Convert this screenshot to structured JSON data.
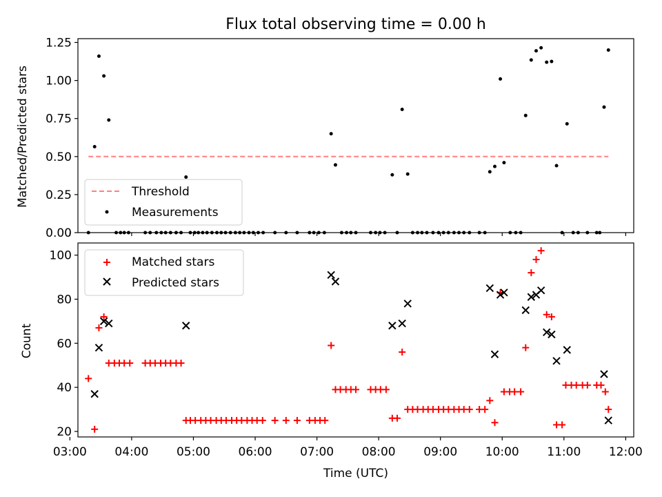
{
  "title": "Flux total observing time = 0.00 h",
  "colors": {
    "threshold": "#ff7f7f",
    "measurement": "#000000",
    "matched": "#ff0000",
    "predicted": "#000000"
  },
  "chart_data": [
    {
      "type": "scatter",
      "title": "Flux total observing time = 0.00 h",
      "ylabel": "Matched/Predicted stars",
      "xlim": [
        3.13,
        12.13
      ],
      "ylim": [
        0,
        1.275
      ],
      "yticks": [
        0.0,
        0.25,
        0.5,
        0.75,
        1.0,
        1.25
      ],
      "ytick_labels": [
        "0.00",
        "0.25",
        "0.50",
        "0.75",
        "1.00",
        "1.25"
      ],
      "legend_position": "lower-left",
      "threshold": {
        "name": "Threshold",
        "value": 0.5,
        "x_range": [
          3.3,
          11.72
        ],
        "style": "dashed"
      },
      "series": [
        {
          "name": "Measurements",
          "marker": "dot",
          "points": [
            [
              3.3,
              0
            ],
            [
              3.4,
              0.565
            ],
            [
              3.47,
              1.16
            ],
            [
              3.55,
              1.03
            ],
            [
              3.63,
              0.74
            ],
            [
              3.75,
              0
            ],
            [
              3.82,
              0
            ],
            [
              3.88,
              0
            ],
            [
              3.95,
              0
            ],
            [
              4.22,
              0
            ],
            [
              4.3,
              0
            ],
            [
              4.4,
              0
            ],
            [
              4.48,
              0
            ],
            [
              4.55,
              0
            ],
            [
              4.63,
              0
            ],
            [
              4.72,
              0
            ],
            [
              4.8,
              0
            ],
            [
              4.88,
              0.365
            ],
            [
              4.95,
              0
            ],
            [
              5.02,
              0
            ],
            [
              5.08,
              0
            ],
            [
              5.15,
              0
            ],
            [
              5.22,
              0
            ],
            [
              5.3,
              0
            ],
            [
              5.38,
              0
            ],
            [
              5.45,
              0
            ],
            [
              5.52,
              0
            ],
            [
              5.6,
              0
            ],
            [
              5.68,
              0
            ],
            [
              5.75,
              0
            ],
            [
              5.82,
              0
            ],
            [
              5.9,
              0
            ],
            [
              5.97,
              0
            ],
            [
              6.05,
              0
            ],
            [
              6.13,
              0
            ],
            [
              6.32,
              0
            ],
            [
              6.5,
              0
            ],
            [
              6.68,
              0
            ],
            [
              6.88,
              0
            ],
            [
              6.95,
              0
            ],
            [
              7.03,
              0
            ],
            [
              7.12,
              0
            ],
            [
              7.23,
              0.65
            ],
            [
              7.3,
              0.445
            ],
            [
              7.4,
              0
            ],
            [
              7.48,
              0
            ],
            [
              7.55,
              0
            ],
            [
              7.63,
              0
            ],
            [
              7.87,
              0
            ],
            [
              7.95,
              0
            ],
            [
              8.02,
              0
            ],
            [
              8.1,
              0
            ],
            [
              8.22,
              0.38
            ],
            [
              8.3,
              0
            ],
            [
              8.38,
              0.81
            ],
            [
              8.47,
              0.385
            ],
            [
              8.55,
              0
            ],
            [
              8.63,
              0
            ],
            [
              8.7,
              0
            ],
            [
              8.78,
              0
            ],
            [
              8.88,
              0
            ],
            [
              8.97,
              0
            ],
            [
              9.05,
              0
            ],
            [
              9.13,
              0
            ],
            [
              9.22,
              0
            ],
            [
              9.3,
              0
            ],
            [
              9.38,
              0
            ],
            [
              9.47,
              0
            ],
            [
              9.63,
              0
            ],
            [
              9.72,
              0
            ],
            [
              9.8,
              0.4
            ],
            [
              9.88,
              0.435
            ],
            [
              9.97,
              1.01
            ],
            [
              10.03,
              0.46
            ],
            [
              10.13,
              0
            ],
            [
              10.22,
              0
            ],
            [
              10.3,
              0
            ],
            [
              10.38,
              0.77
            ],
            [
              10.47,
              1.135
            ],
            [
              10.55,
              1.195
            ],
            [
              10.63,
              1.215
            ],
            [
              10.72,
              1.12
            ],
            [
              10.8,
              1.125
            ],
            [
              10.88,
              0.44
            ],
            [
              10.97,
              0
            ],
            [
              11.05,
              0.715
            ],
            [
              11.15,
              0
            ],
            [
              11.23,
              0
            ],
            [
              11.38,
              0
            ],
            [
              11.53,
              0
            ],
            [
              11.58,
              0
            ],
            [
              11.65,
              0.825
            ],
            [
              11.72,
              1.2
            ]
          ]
        }
      ]
    },
    {
      "type": "scatter",
      "xlabel": "Time (UTC)",
      "ylabel": "Count",
      "xlim": [
        3.13,
        12.13
      ],
      "ylim": [
        17.5,
        105.5
      ],
      "yticks": [
        20,
        40,
        60,
        80,
        100
      ],
      "xticks": [
        3,
        4,
        5,
        6,
        7,
        8,
        9,
        10,
        11,
        12
      ],
      "xtick_labels": [
        "03:00",
        "04:00",
        "05:00",
        "06:00",
        "07:00",
        "08:00",
        "09:00",
        "10:00",
        "11:00",
        "12:00"
      ],
      "legend_position": "upper-left",
      "series": [
        {
          "name": "Matched stars",
          "marker": "plus",
          "points": [
            [
              3.3,
              44
            ],
            [
              3.4,
              21
            ],
            [
              3.47,
              67
            ],
            [
              3.55,
              72
            ],
            [
              3.63,
              51
            ],
            [
              3.72,
              51
            ],
            [
              3.8,
              51
            ],
            [
              3.88,
              51
            ],
            [
              3.97,
              51
            ],
            [
              4.22,
              51
            ],
            [
              4.3,
              51
            ],
            [
              4.38,
              51
            ],
            [
              4.47,
              51
            ],
            [
              4.55,
              51
            ],
            [
              4.63,
              51
            ],
            [
              4.72,
              51
            ],
            [
              4.8,
              51
            ],
            [
              4.88,
              25
            ],
            [
              4.95,
              25
            ],
            [
              5.03,
              25
            ],
            [
              5.12,
              25
            ],
            [
              5.2,
              25
            ],
            [
              5.28,
              25
            ],
            [
              5.37,
              25
            ],
            [
              5.45,
              25
            ],
            [
              5.53,
              25
            ],
            [
              5.62,
              25
            ],
            [
              5.7,
              25
            ],
            [
              5.78,
              25
            ],
            [
              5.87,
              25
            ],
            [
              5.95,
              25
            ],
            [
              6.03,
              25
            ],
            [
              6.12,
              25
            ],
            [
              6.32,
              25
            ],
            [
              6.5,
              25
            ],
            [
              6.68,
              25
            ],
            [
              6.88,
              25
            ],
            [
              6.97,
              25
            ],
            [
              7.05,
              25
            ],
            [
              7.13,
              25
            ],
            [
              7.23,
              59
            ],
            [
              7.3,
              39
            ],
            [
              7.38,
              39
            ],
            [
              7.47,
              39
            ],
            [
              7.55,
              39
            ],
            [
              7.63,
              39
            ],
            [
              7.87,
              39
            ],
            [
              7.95,
              39
            ],
            [
              8.03,
              39
            ],
            [
              8.12,
              39
            ],
            [
              8.22,
              26
            ],
            [
              8.3,
              26
            ],
            [
              8.38,
              56
            ],
            [
              8.47,
              30
            ],
            [
              8.55,
              30
            ],
            [
              8.63,
              30
            ],
            [
              8.72,
              30
            ],
            [
              8.8,
              30
            ],
            [
              8.88,
              30
            ],
            [
              8.97,
              30
            ],
            [
              9.05,
              30
            ],
            [
              9.13,
              30
            ],
            [
              9.22,
              30
            ],
            [
              9.3,
              30
            ],
            [
              9.38,
              30
            ],
            [
              9.47,
              30
            ],
            [
              9.63,
              30
            ],
            [
              9.72,
              30
            ],
            [
              9.8,
              34
            ],
            [
              9.88,
              24
            ],
            [
              9.97,
              83
            ],
            [
              10.03,
              38
            ],
            [
              10.12,
              38
            ],
            [
              10.2,
              38
            ],
            [
              10.3,
              38
            ],
            [
              10.38,
              58
            ],
            [
              10.47,
              92
            ],
            [
              10.55,
              98
            ],
            [
              10.63,
              102
            ],
            [
              10.72,
              73
            ],
            [
              10.8,
              72
            ],
            [
              10.88,
              23
            ],
            [
              10.97,
              23
            ],
            [
              11.03,
              41
            ],
            [
              11.12,
              41
            ],
            [
              11.2,
              41
            ],
            [
              11.3,
              41
            ],
            [
              11.38,
              41
            ],
            [
              11.53,
              41
            ],
            [
              11.6,
              41
            ],
            [
              11.67,
              38
            ],
            [
              11.72,
              30
            ]
          ]
        },
        {
          "name": "Predicted stars",
          "marker": "x",
          "points": [
            [
              3.4,
              37
            ],
            [
              3.47,
              58
            ],
            [
              3.55,
              70
            ],
            [
              3.63,
              69
            ],
            [
              4.88,
              68
            ],
            [
              7.23,
              91
            ],
            [
              7.3,
              88
            ],
            [
              8.22,
              68
            ],
            [
              8.38,
              69
            ],
            [
              8.47,
              78
            ],
            [
              9.8,
              85
            ],
            [
              9.88,
              55
            ],
            [
              9.97,
              82
            ],
            [
              10.03,
              83
            ],
            [
              10.38,
              75
            ],
            [
              10.47,
              81
            ],
            [
              10.55,
              82
            ],
            [
              10.63,
              84
            ],
            [
              10.72,
              65
            ],
            [
              10.8,
              64
            ],
            [
              10.88,
              52
            ],
            [
              11.05,
              57
            ],
            [
              11.65,
              46
            ],
            [
              11.72,
              25
            ]
          ]
        }
      ]
    }
  ]
}
